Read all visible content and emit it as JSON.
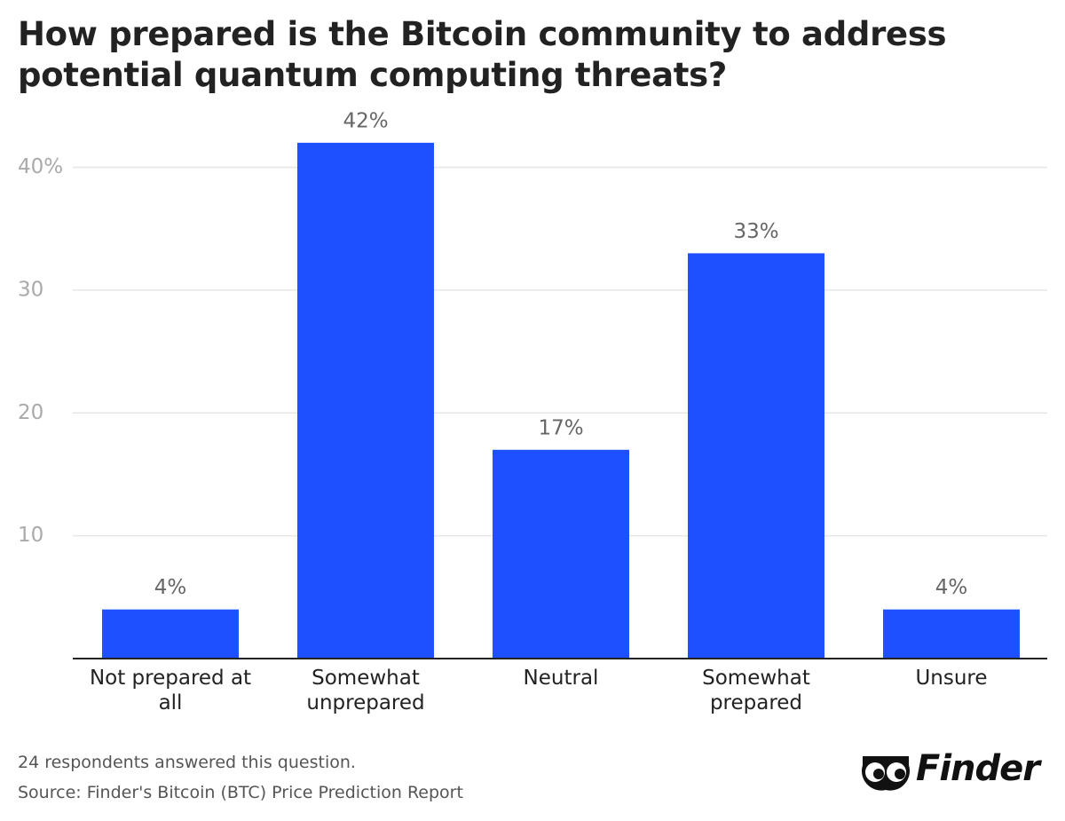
{
  "chart_data": {
    "type": "bar",
    "title": "How prepared is the Bitcoin community to address potential quantum computing threats?",
    "categories": [
      "Not prepared at all",
      "Somewhat unprepared",
      "Neutral",
      "Somewhat prepared",
      "Unsure"
    ],
    "values": [
      4,
      42,
      17,
      33,
      4
    ],
    "value_labels": [
      "4%",
      "42%",
      "17%",
      "33%",
      "4%"
    ],
    "color": "#1f50ff",
    "ylim": [
      0,
      43
    ],
    "yticks": [
      10,
      20,
      30,
      {
        "value": 40,
        "label": "40%"
      }
    ],
    "grid": true,
    "note": "24 respondents answered this question.",
    "source": "Source: Finder's Bitcoin (BTC) Price Prediction Report",
    "logo": "Finder"
  }
}
